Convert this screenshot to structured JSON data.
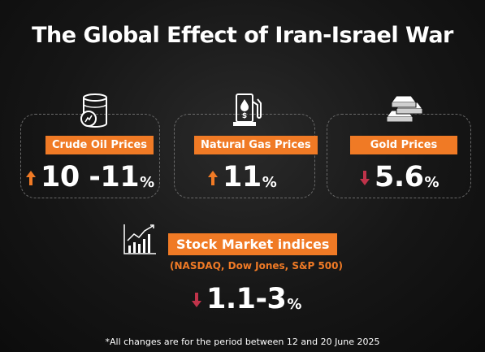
{
  "title": "The Global Effect of Iran-Israel War",
  "colors": {
    "accent": "#f07a25",
    "up": "#f07a25",
    "down": "#c0334a",
    "background": "#161616"
  },
  "cards": [
    {
      "label": "Crude Oil Prices",
      "direction": "up",
      "value": "10 -11",
      "unit": "%",
      "icon": "oil-barrel-icon"
    },
    {
      "label": "Natural Gas Prices",
      "direction": "up",
      "value": "11",
      "unit": "%",
      "icon": "fuel-pump-icon"
    },
    {
      "label": "Gold Prices",
      "direction": "down",
      "value": "5.6",
      "unit": "%",
      "icon": "gold-bars-icon"
    }
  ],
  "stock": {
    "label": "Stock Market indices",
    "subtitle": "(NASDAQ, Dow Jones, S&P 500)",
    "direction": "down",
    "value": "1.1-3",
    "unit": "%",
    "icon": "stock-chart-icon"
  },
  "footnote": "*All changes are for the period between 12 and 20 June 2025"
}
